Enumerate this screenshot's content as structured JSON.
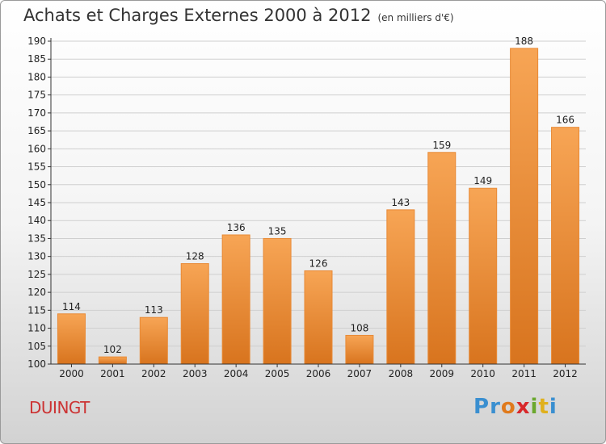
{
  "header": {
    "title": "Achats et Charges Externes 2000 à 2012",
    "subtitle": "(en milliers d'€)"
  },
  "footer": {
    "commune": "DUINGT",
    "logo_letters": [
      "P",
      "r",
      "o",
      "x",
      "i",
      "t",
      "i"
    ],
    "logo_colors": [
      "#3a8fd0",
      "#3a8fd0",
      "#e07a1c",
      "#d8282a",
      "#6aa82e",
      "#e0b01c",
      "#3a8fd0"
    ]
  },
  "colors": {
    "bar_top": "#f7a555",
    "bar_bottom": "#d8741e",
    "bar_edge": "#e88a36",
    "grid": "#cfcfcf",
    "axis": "#333333"
  },
  "chart_data": {
    "type": "bar",
    "categories": [
      "2000",
      "2001",
      "2002",
      "2003",
      "2004",
      "2005",
      "2006",
      "2007",
      "2008",
      "2009",
      "2010",
      "2011",
      "2012"
    ],
    "values": [
      114,
      102,
      113,
      128,
      136,
      135,
      126,
      108,
      143,
      159,
      149,
      188,
      166
    ],
    "ylim": [
      100,
      190
    ],
    "yticks": [
      100,
      105,
      110,
      115,
      120,
      125,
      130,
      135,
      140,
      145,
      150,
      155,
      160,
      165,
      170,
      175,
      180,
      185,
      190
    ],
    "grid": true,
    "xlabel": "",
    "ylabel": ""
  }
}
